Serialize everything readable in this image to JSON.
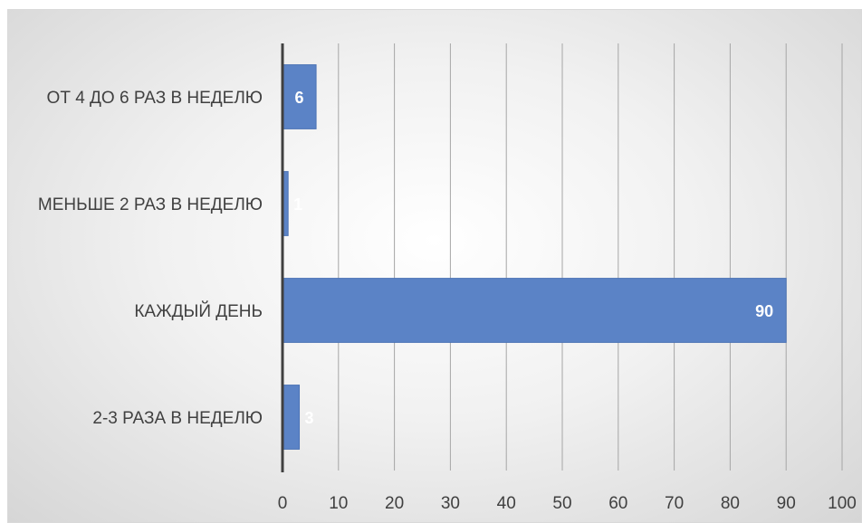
{
  "chart_data": {
    "type": "bar",
    "orientation": "horizontal",
    "categories": [
      "ОТ 4 ДО 6 РАЗ В НЕДЕЛЮ",
      "МЕНЬШЕ 2 РАЗ В НЕДЕЛЮ",
      "КАЖДЫЙ ДЕНЬ",
      "2-3 РАЗА В НЕДЕЛЮ"
    ],
    "values": [
      6,
      1,
      90,
      3
    ],
    "data_labels": [
      "6",
      "1",
      "90",
      "3"
    ],
    "x_ticks": [
      "0",
      "10",
      "20",
      "30",
      "40",
      "50",
      "60",
      "70",
      "80",
      "90",
      "100"
    ],
    "xlim": [
      0,
      100
    ],
    "grid": true,
    "bar_color": "#5b83c6",
    "title": "",
    "xlabel": "",
    "ylabel": ""
  }
}
